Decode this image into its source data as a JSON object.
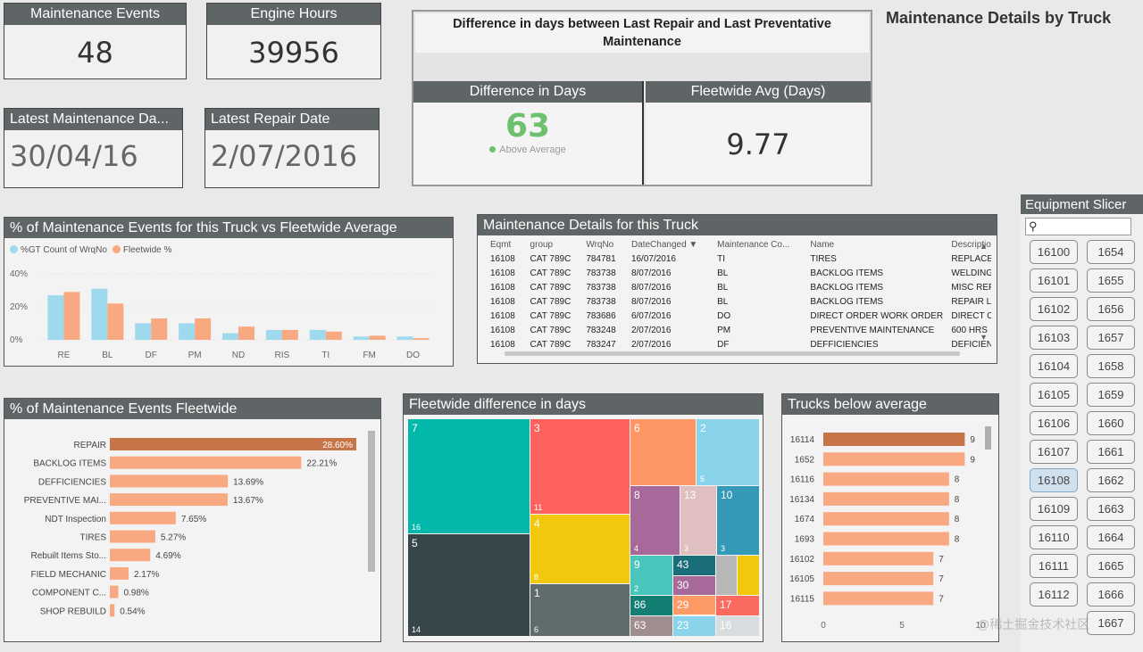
{
  "kpis": {
    "maintenance_events": {
      "label": "Maintenance Events",
      "value": "48"
    },
    "engine_hours": {
      "label": "Engine Hours",
      "value": "39956"
    },
    "latest_maintenance": {
      "label": "Latest Maintenance Da...",
      "value": "30/04/16"
    },
    "latest_repair": {
      "label": "Latest Repair Date",
      "value": "2/07/2016"
    }
  },
  "difference": {
    "title": "Difference in days between Last Repair and Last Preventative Maintenance",
    "diff_label": "Difference in Days",
    "diff_value": "63",
    "diff_status": "Above Average",
    "avg_label": "Fleetwide Avg (Days)",
    "avg_value": "9.77"
  },
  "page_title": "Maintenance Details by Truck",
  "colors": {
    "blue": "#9fd9ee",
    "orange": "#f9a981",
    "dark_orange": "#c87449",
    "header": "#5f6566",
    "green": "#6dc06d"
  },
  "vs_chart": {
    "title": "% of Maintenance Events for this Truck vs Fleetwide Average",
    "legend": [
      "%GT Count of WrqNo",
      "Fleetwide %"
    ],
    "chart_data": {
      "type": "bar",
      "categories": [
        "RE",
        "BL",
        "DF",
        "PM",
        "ND",
        "RIS",
        "TI",
        "FM",
        "DO"
      ],
      "series": [
        {
          "name": "%GT Count of WrqNo",
          "values": [
            27,
            31,
            10,
            10,
            4,
            6,
            6,
            2,
            2
          ]
        },
        {
          "name": "Fleetwide %",
          "values": [
            29,
            22,
            13,
            13,
            8,
            6,
            5,
            2.5,
            1
          ]
        }
      ],
      "yticks": [
        "0%",
        "20%",
        "40%"
      ],
      "ylim": [
        0,
        40
      ]
    }
  },
  "details": {
    "title": "Maintenance Details for this Truck",
    "columns": [
      "Eqmt",
      "group",
      "WrqNo",
      "DateChanged",
      "Maintenance Co...",
      "Name",
      "Descriptio"
    ],
    "rows": [
      [
        "16108",
        "CAT 789C",
        "784781",
        "16/07/2016",
        "TI",
        "TIRES",
        "REPLACE"
      ],
      [
        "16108",
        "CAT 789C",
        "783738",
        "8/07/2016",
        "BL",
        "BACKLOG ITEMS",
        "WELDING"
      ],
      [
        "16108",
        "CAT 789C",
        "783738",
        "8/07/2016",
        "BL",
        "BACKLOG ITEMS",
        "MISC REF"
      ],
      [
        "16108",
        "CAT 789C",
        "783738",
        "8/07/2016",
        "BL",
        "BACKLOG ITEMS",
        "REPAIR L"
      ],
      [
        "16108",
        "CAT 789C",
        "783686",
        "6/07/2016",
        "DO",
        "DIRECT ORDER WORK ORDER",
        "DIRECT C"
      ],
      [
        "16108",
        "CAT 789C",
        "783248",
        "2/07/2016",
        "PM",
        "PREVENTIVE MAINTENANCE",
        "600 HRS"
      ],
      [
        "16108",
        "CAT 789C",
        "783247",
        "2/07/2016",
        "DF",
        "DEFFICIENCIES",
        "DEFICIEN"
      ]
    ]
  },
  "fleetwide_pct": {
    "title": "% of Maintenance Events Fleetwide",
    "chart_data": {
      "type": "bar",
      "categories": [
        "REPAIR",
        "BACKLOG ITEMS",
        "DEFFICIENCIES",
        "PREVENTIVE MAI...",
        "NDT Inspection",
        "TIRES",
        "Rebuilt Items Sto...",
        "FIELD MECHANIC",
        "COMPONENT C...",
        "SHOP REBUILD"
      ],
      "values": [
        28.6,
        22.21,
        13.69,
        13.67,
        7.65,
        5.27,
        4.69,
        2.17,
        0.98,
        0.54
      ],
      "labels": [
        "28.60%",
        "22.21%",
        "13.69%",
        "13.67%",
        "7.65%",
        "5.27%",
        "4.69%",
        "2.17%",
        "0.98%",
        "0.54%"
      ]
    }
  },
  "treemap": {
    "title": "Fleetwide difference in days",
    "tiles": [
      {
        "label": "7",
        "sub": "16",
        "color": "#02b8ab"
      },
      {
        "label": "5",
        "sub": "14",
        "color": "#374649"
      },
      {
        "label": "3",
        "sub": "11",
        "color": "#fd625e"
      },
      {
        "label": "4",
        "sub": "8",
        "color": "#f2c80f"
      },
      {
        "label": "1",
        "sub": "6",
        "color": "#5f6b6d"
      },
      {
        "label": "6",
        "sub": "",
        "color": "#fe9666"
      },
      {
        "label": "2",
        "sub": "5",
        "color": "#8ad4eb"
      },
      {
        "label": "8",
        "sub": "4",
        "color": "#a66999"
      },
      {
        "label": "13",
        "sub": "3",
        "color": "#dfbfbf"
      },
      {
        "label": "10",
        "sub": "3",
        "color": "#3599b8"
      },
      {
        "label": "9",
        "sub": "2",
        "color": "#4ac5bb"
      },
      {
        "label": "43",
        "sub": "",
        "color": "#1a6e7a"
      },
      {
        "label": "30",
        "sub": "",
        "color": "#a66999"
      },
      {
        "label": "86",
        "sub": "",
        "color": "#137f72"
      },
      {
        "label": "29",
        "sub": "",
        "color": "#fd9a66"
      },
      {
        "label": "17",
        "sub": "",
        "color": "#fb6a5e"
      },
      {
        "label": "63",
        "sub": "",
        "color": "#a08e8e"
      },
      {
        "label": "23",
        "sub": "",
        "color": "#8ad4eb"
      },
      {
        "label": "16",
        "sub": "",
        "color": "#d9dde0"
      },
      {
        "label": "",
        "sub": "",
        "color": "#b7b7b7"
      },
      {
        "label": "",
        "sub": "",
        "color": "#f2c80f"
      }
    ]
  },
  "below_avg": {
    "title": "Trucks below average",
    "chart_data": {
      "type": "bar",
      "categories": [
        "16114",
        "1652",
        "16116",
        "16134",
        "1674",
        "1693",
        "16102",
        "16105",
        "16115"
      ],
      "values": [
        9,
        9,
        8,
        8,
        8,
        8,
        7,
        7,
        7
      ],
      "xticks": [
        "0",
        "5",
        "10"
      ],
      "xlim": [
        0,
        10
      ]
    }
  },
  "slicer": {
    "title": "Equipment Slicer",
    "search_placeholder": "",
    "left": [
      "16100",
      "16101",
      "16102",
      "16103",
      "16104",
      "16105",
      "16106",
      "16107",
      "16108",
      "16109",
      "16110",
      "16111",
      "16112"
    ],
    "right": [
      "1654",
      "1655",
      "1656",
      "1657",
      "1658",
      "1659",
      "1660",
      "1661",
      "1662",
      "1663",
      "1664",
      "1665",
      "1666",
      "1667"
    ],
    "selected": "16108"
  },
  "watermark": "@稀土掘金技术社区"
}
